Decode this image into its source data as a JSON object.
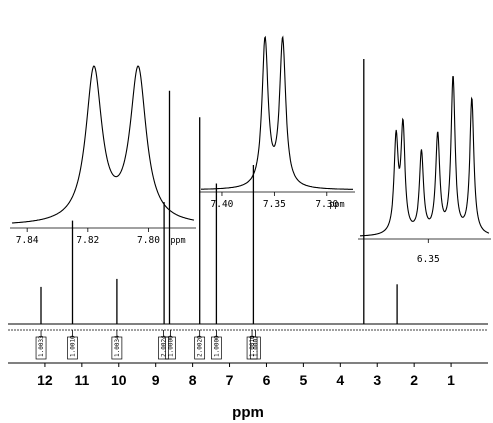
{
  "chart_data": {
    "type": "line",
    "title": "",
    "xlabel": "ppm",
    "ylabel": "",
    "xlim": [
      13.0,
      0.0
    ],
    "x_ticks": [
      "12",
      "11",
      "10",
      "9",
      "8",
      "7",
      "6",
      "5",
      "4",
      "3",
      "2",
      "1"
    ],
    "peak_labels": [
      "12.1052",
      "11.2539",
      "10.0512",
      "8.7759",
      "8.7679",
      "8.6262",
      "7.8180",
      "7.8094",
      "7.8034",
      "7.3589",
      "7.3580",
      "7.3421",
      "6.3712",
      "6.3667",
      "6.3545",
      "6.3438",
      "6.3337",
      "6.3213",
      "3.3637",
      "2.4823",
      "2.4588",
      "2.4554"
    ],
    "peaks": [
      {
        "ppm": 12.105,
        "height": 0.14
      },
      {
        "ppm": 11.254,
        "height": 0.39
      },
      {
        "ppm": 10.051,
        "height": 0.17
      },
      {
        "ppm": 8.772,
        "height": 0.46
      },
      {
        "ppm": 8.626,
        "height": 0.88
      },
      {
        "ppm": 7.809,
        "height": 0.78
      },
      {
        "ppm": 7.355,
        "height": 0.53
      },
      {
        "ppm": 6.355,
        "height": 0.6
      },
      {
        "ppm": 3.364,
        "height": 1.0
      },
      {
        "ppm": 2.461,
        "height": 0.15
      }
    ],
    "integrals": [
      {
        "ppm": 12.105,
        "label": "1.0033"
      },
      {
        "ppm": 11.254,
        "label": "1.0010"
      },
      {
        "ppm": 10.051,
        "label": "1.0034"
      },
      {
        "ppm": 8.79,
        "label": "2.0024"
      },
      {
        "ppm": 8.6,
        "label": "1.0000"
      },
      {
        "ppm": 7.809,
        "label": "2.0020"
      },
      {
        "ppm": 7.355,
        "label": "1.0000"
      },
      {
        "ppm": 6.39,
        "label": "1.0010"
      },
      {
        "ppm": 6.3,
        "label": "1.0007"
      }
    ],
    "insets": [
      {
        "name": "inset-7-8",
        "xlim": [
          7.845,
          7.785
        ],
        "tick_values": [
          7.84,
          7.82,
          7.8
        ],
        "tick_labels": [
          "7.84",
          "7.82",
          "7.80"
        ],
        "unit_label": "ppm",
        "peaks": [
          {
            "ppm": 7.818,
            "height": 0.85,
            "width": 0.0032
          },
          {
            "ppm": 7.8034,
            "height": 0.85,
            "width": 0.0032
          }
        ]
      },
      {
        "name": "inset-7-3",
        "xlim": [
          7.42,
          7.275
        ],
        "tick_values": [
          7.4,
          7.35,
          7.3
        ],
        "tick_labels": [
          "7.40",
          "7.35",
          "7.30"
        ],
        "unit_label": "ppm",
        "peaks": [
          {
            "ppm": 7.3589,
            "height": 0.92,
            "width": 0.0035
          },
          {
            "ppm": 7.3421,
            "height": 0.92,
            "width": 0.0035
          }
        ]
      },
      {
        "name": "inset-6-3",
        "xlim": [
          6.395,
          6.31
        ],
        "tick_values": [
          6.35
        ],
        "tick_labels": [
          "6.35"
        ],
        "unit_label": "",
        "peaks": [
          {
            "ppm": 6.3712,
            "height": 0.55,
            "width": 0.0016
          },
          {
            "ppm": 6.3667,
            "height": 0.62,
            "width": 0.0016
          },
          {
            "ppm": 6.3545,
            "height": 0.48,
            "width": 0.0016
          },
          {
            "ppm": 6.3438,
            "height": 0.58,
            "width": 0.0016
          },
          {
            "ppm": 6.3337,
            "height": 0.92,
            "width": 0.0016
          },
          {
            "ppm": 6.3213,
            "height": 0.8,
            "width": 0.0016
          }
        ]
      }
    ]
  }
}
